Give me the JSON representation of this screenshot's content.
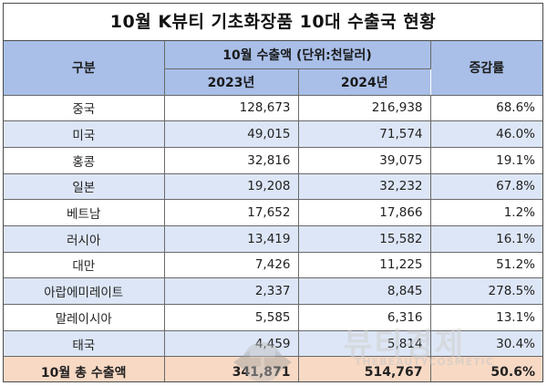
{
  "title": "10월 K뷰티 기초화장품 10대 수출국 현황",
  "header": {
    "category": "구분",
    "export_group": "10월 수출액 (단위:천달러)",
    "year_2023": "2023년",
    "year_2024": "2024년",
    "change": "증감률"
  },
  "rows": [
    {
      "country": "중국",
      "v2023": "128,673",
      "v2024": "216,938",
      "change": "68.6%"
    },
    {
      "country": "미국",
      "v2023": "49,015",
      "v2024": "71,574",
      "change": "46.0%"
    },
    {
      "country": "홍콩",
      "v2023": "32,816",
      "v2024": "39,075",
      "change": "19.1%"
    },
    {
      "country": "일본",
      "v2023": "19,208",
      "v2024": "32,232",
      "change": "67.8%"
    },
    {
      "country": "베트남",
      "v2023": "17,652",
      "v2024": "17,866",
      "change": "1.2%"
    },
    {
      "country": "러시아",
      "v2023": "13,419",
      "v2024": "15,582",
      "change": "16.1%"
    },
    {
      "country": "대만",
      "v2023": "7,426",
      "v2024": "11,225",
      "change": "51.2%"
    },
    {
      "country": "아랍에미레이트",
      "v2023": "2,337",
      "v2024": "8,845",
      "change": "278.5%"
    },
    {
      "country": "말레이시아",
      "v2023": "5,585",
      "v2024": "6,316",
      "change": "13.1%"
    },
    {
      "country": "태국",
      "v2023": "4,459",
      "v2024": "5,814",
      "change": "30.4%"
    }
  ],
  "total": {
    "label": "10월 총 수출액",
    "v2023": "341,871",
    "v2024": "514,767",
    "change": "50.6%"
  },
  "watermark": {
    "text": "뷰티경제",
    "sub": "THEBEAUTYCOSMETIC",
    "icon": "nav-arrows-icon"
  },
  "colors": {
    "header_bg": "#a9bfe8",
    "stripe_bg": "#dde6f6",
    "total_bg": "#f8d9c4"
  }
}
